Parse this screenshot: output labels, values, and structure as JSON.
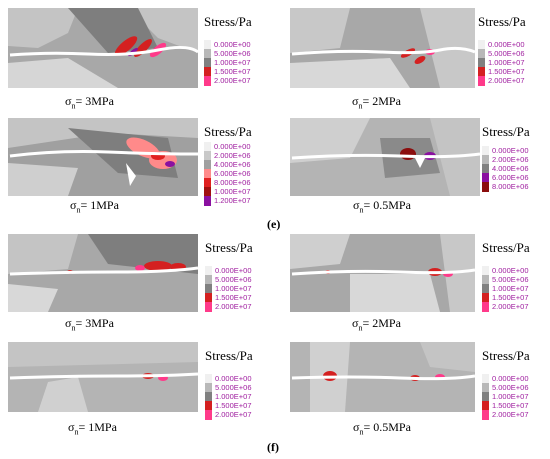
{
  "colors": {
    "background": "#ffffff",
    "legend_text": "#a020a0",
    "crack": "#ffffff"
  },
  "groups": [
    {
      "label": "(e)",
      "panels": [
        {
          "sigma_symbol": "σ",
          "sigma_sub": "n",
          "caption_value": "= 3MPa",
          "legend_title": "Stress/Pa",
          "legend_levels": [
            "0.000E+00",
            "5.000E+06",
            "1.000E+07",
            "1.500E+07",
            "2.000E+07"
          ],
          "legend_colors": [
            "#f0f0f0",
            "#b8b8b8",
            "#808080",
            "#d42020",
            "#ff3a8a"
          ]
        },
        {
          "sigma_symbol": "σ",
          "sigma_sub": "n",
          "caption_value": "= 2MPa",
          "legend_title": "Stress/Pa",
          "legend_levels": [
            "0.000E+00",
            "5.000E+06",
            "1.000E+07",
            "1.500E+07",
            "2.000E+07"
          ],
          "legend_colors": [
            "#f0f0f0",
            "#b8b8b8",
            "#808080",
            "#d42020",
            "#ff3a8a"
          ]
        },
        {
          "sigma_symbol": "σ",
          "sigma_sub": "n",
          "caption_value": "= 1MPa",
          "legend_title": "Stress/Pa",
          "legend_levels": [
            "0.000E+00",
            "2.000E+06",
            "4.000E+06",
            "6.000E+06",
            "8.000E+06",
            "1.000E+07",
            "1.200E+07"
          ],
          "legend_colors": [
            "#f0f0f0",
            "#c8c8c8",
            "#a0a0a0",
            "#ff8a8a",
            "#e02020",
            "#a01010",
            "#8a10a0"
          ]
        },
        {
          "sigma_symbol": "σ",
          "sigma_sub": "n",
          "caption_value": "= 0.5MPa",
          "legend_title": "Stress/Pa",
          "legend_levels": [
            "0.000E+00",
            "2.000E+06",
            "4.000E+06",
            "6.000E+06",
            "8.000E+06"
          ],
          "legend_colors": [
            "#f0f0f0",
            "#b8b8b8",
            "#808080",
            "#8a10a0",
            "#8b0d0d"
          ]
        }
      ]
    },
    {
      "label": "(f)",
      "panels": [
        {
          "sigma_symbol": "σ",
          "sigma_sub": "n",
          "caption_value": "= 3MPa",
          "legend_title": "Stress/Pa",
          "legend_levels": [
            "0.000E+00",
            "5.000E+06",
            "1.000E+07",
            "1.500E+07",
            "2.000E+07"
          ],
          "legend_colors": [
            "#f0f0f0",
            "#b8b8b8",
            "#808080",
            "#d42020",
            "#ff3a8a"
          ]
        },
        {
          "sigma_symbol": "σ",
          "sigma_sub": "n",
          "caption_value": "= 2MPa",
          "legend_title": "Stress/Pa",
          "legend_levels": [
            "0.000E+00",
            "5.000E+06",
            "1.000E+07",
            "1.500E+07",
            "2.000E+07"
          ],
          "legend_colors": [
            "#f0f0f0",
            "#b8b8b8",
            "#808080",
            "#d42020",
            "#ff3a8a"
          ]
        },
        {
          "sigma_symbol": "σ",
          "sigma_sub": "n",
          "caption_value": "= 1MPa",
          "legend_title": "Stress/Pa",
          "legend_levels": [
            "0.000E+00",
            "5.000E+06",
            "1.000E+07",
            "1.500E+07",
            "2.000E+07"
          ],
          "legend_colors": [
            "#f0f0f0",
            "#b8b8b8",
            "#808080",
            "#d42020",
            "#ff3a8a"
          ]
        },
        {
          "sigma_symbol": "σ",
          "sigma_sub": "n",
          "caption_value": "= 0.5MPa",
          "legend_title": "Stress/Pa",
          "legend_levels": [
            "0.000E+00",
            "5.000E+06",
            "1.000E+07",
            "1.500E+07",
            "2.000E+07"
          ],
          "legend_colors": [
            "#f0f0f0",
            "#b8b8b8",
            "#808080",
            "#d42020",
            "#ff3a8a"
          ]
        }
      ]
    }
  ]
}
